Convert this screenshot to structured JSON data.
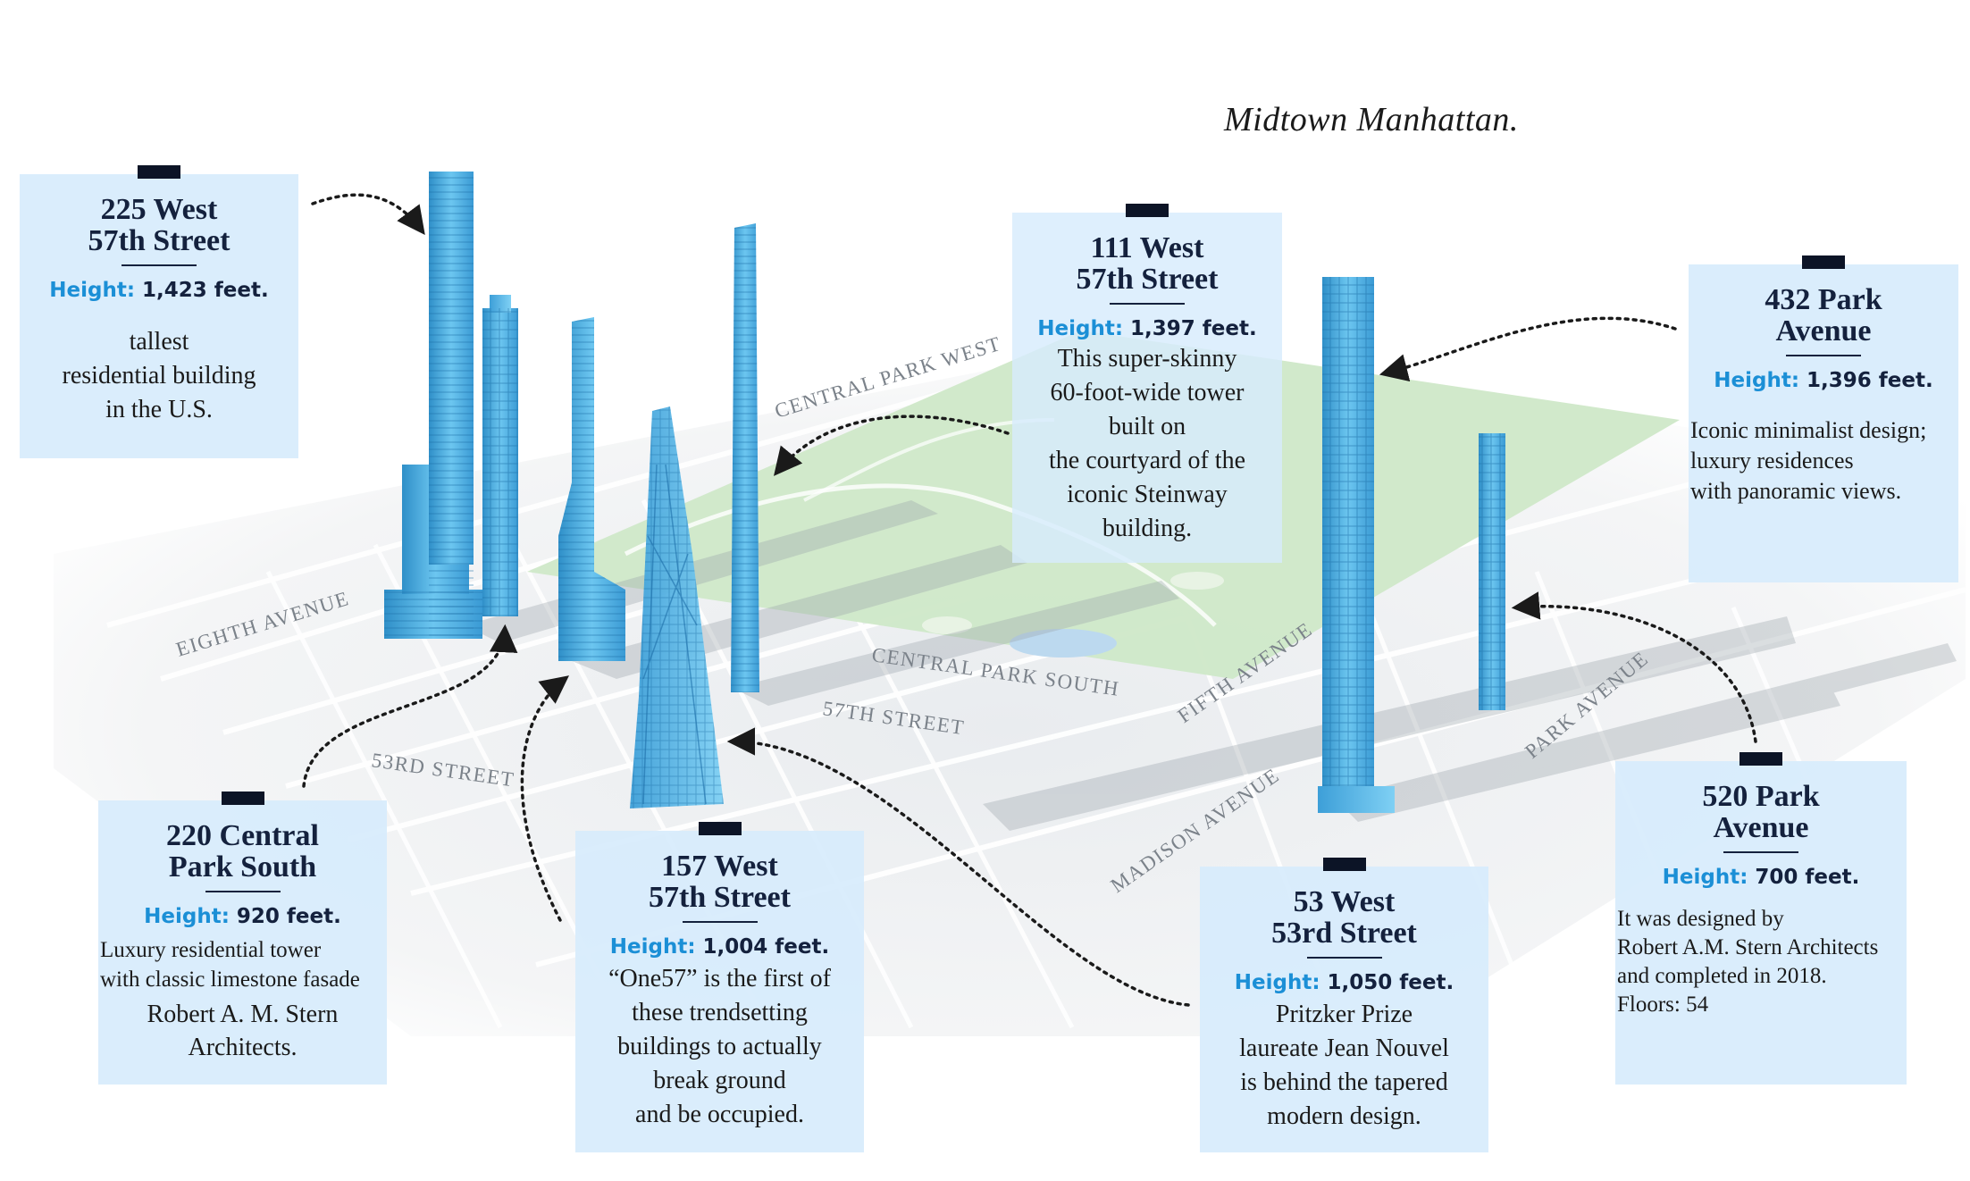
{
  "title": "Midtown Manhattan.",
  "streets": {
    "central_park_west": "CENTRAL PARK WEST",
    "eighth_avenue": "EIGHTH AVENUE",
    "central_park_south": "CENTRAL PARK SOUTH",
    "fifty_seventh": "57TH STREET",
    "fifth_avenue": "FIFTH AVENUE",
    "fifty_third": "53RD STREET",
    "madison_avenue": "MADISON AVENUE",
    "park_avenue": "PARK AVENUE"
  },
  "buildings": {
    "w225": {
      "name_line1": "225 West",
      "name_line2": "57th Street",
      "height_label": "Height:",
      "height_value": "1,423 feet.",
      "description": "tallest\nresidential building\nin the U.S."
    },
    "w111": {
      "name_line1": "111 West",
      "name_line2": "57th Street",
      "height_label": "Height:",
      "height_value": "1,397 feet.",
      "description": "This super-skinny\n60-foot-wide tower\nbuilt on\nthe courtyard of the\niconic Steinway\nbuilding."
    },
    "park432": {
      "name_line1": "432 Park",
      "name_line2": "Avenue",
      "height_label": "Height:",
      "height_value": "1,396 feet.",
      "description": "Iconic minimalist design;\nluxury residences\nwith panoramic views."
    },
    "cps220": {
      "name_line1": "220 Central",
      "name_line2": "Park South",
      "height_label": "Height:",
      "height_value": "920 feet.",
      "description": "Luxury residential tower\nwith classic limestone fasade",
      "extra": "Robert A. M. Stern\nArchitects."
    },
    "w157": {
      "name_line1": "157 West",
      "name_line2": "57th Street",
      "height_label": "Height:",
      "height_value": "1,004 feet.",
      "description": "“One57” is the first of\nthese trendsetting\nbuildings to actually\nbreak ground\nand be occupied."
    },
    "w53": {
      "name_line1": "53 West",
      "name_line2": "53rd Street",
      "height_label": "Height:",
      "height_value": "1,050 feet.",
      "description": "Pritzker Prize\nlaureate Jean Nouvel\nis behind the tapered\nmodern design."
    },
    "park520": {
      "name_line1": "520 Park",
      "name_line2": "Avenue",
      "height_label": "Height:",
      "height_value": "700 feet.",
      "description": "It was designed by\nRobert A.M. Stern Architects\nand completed in 2018.\nFloors: 54"
    }
  },
  "colors": {
    "tower": "#4aaee0",
    "park": "#cfe8c8",
    "card": "#d7ecfc",
    "accent": "#1b8fd6"
  }
}
